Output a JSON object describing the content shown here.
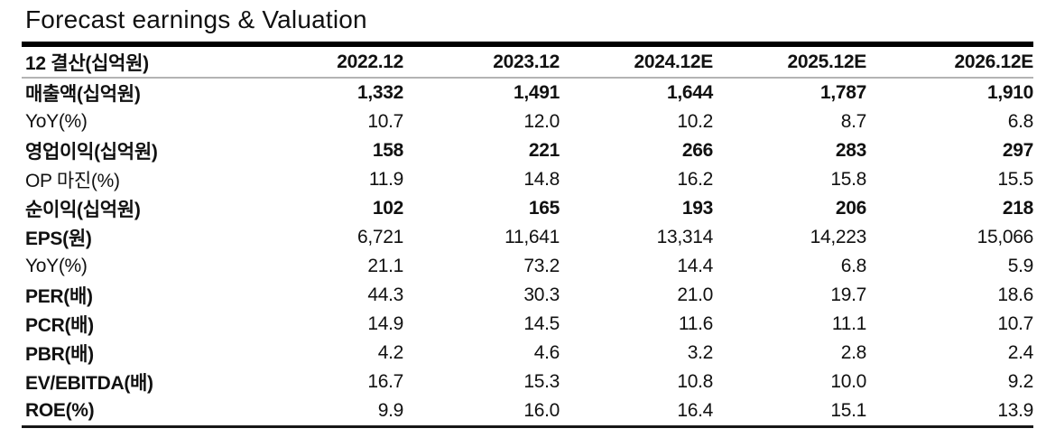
{
  "page": {
    "title": "Forecast earnings & Valuation"
  },
  "table": {
    "header": {
      "label": "12 결산(십억원)",
      "columns": [
        "2022.12",
        "2023.12",
        "2024.12E",
        "2025.12E",
        "2026.12E"
      ]
    },
    "rows": [
      {
        "label": "매출액(십억원)",
        "bold_label": true,
        "bold_values": true,
        "values": [
          "1,332",
          "1,491",
          "1,644",
          "1,787",
          "1,910"
        ]
      },
      {
        "label": "YoY(%)",
        "bold_label": false,
        "bold_values": false,
        "values": [
          "10.7",
          "12.0",
          "10.2",
          "8.7",
          "6.8"
        ]
      },
      {
        "label": "영업이익(십억원)",
        "bold_label": true,
        "bold_values": true,
        "values": [
          "158",
          "221",
          "266",
          "283",
          "297"
        ]
      },
      {
        "label": "OP 마진(%)",
        "bold_label": false,
        "bold_values": false,
        "values": [
          "11.9",
          "14.8",
          "16.2",
          "15.8",
          "15.5"
        ]
      },
      {
        "label": "순이익(십억원)",
        "bold_label": true,
        "bold_values": true,
        "values": [
          "102",
          "165",
          "193",
          "206",
          "218"
        ]
      },
      {
        "label": "EPS(원)",
        "bold_label": true,
        "bold_values": false,
        "values": [
          "6,721",
          "11,641",
          "13,314",
          "14,223",
          "15,066"
        ]
      },
      {
        "label": "YoY(%)",
        "bold_label": false,
        "bold_values": false,
        "values": [
          "21.1",
          "73.2",
          "14.4",
          "6.8",
          "5.9"
        ]
      },
      {
        "label": "PER(배)",
        "bold_label": true,
        "bold_values": false,
        "values": [
          "44.3",
          "30.3",
          "21.0",
          "19.7",
          "18.6"
        ]
      },
      {
        "label": "PCR(배)",
        "bold_label": true,
        "bold_values": false,
        "values": [
          "14.9",
          "14.5",
          "11.6",
          "11.1",
          "10.7"
        ]
      },
      {
        "label": "PBR(배)",
        "bold_label": true,
        "bold_values": false,
        "values": [
          "4.2",
          "4.6",
          "3.2",
          "2.8",
          "2.4"
        ]
      },
      {
        "label": "EV/EBITDA(배)",
        "bold_label": true,
        "bold_values": false,
        "values": [
          "16.7",
          "15.3",
          "10.8",
          "10.0",
          "9.2"
        ]
      },
      {
        "label": "ROE(%)",
        "bold_label": true,
        "bold_values": false,
        "values": [
          "9.9",
          "16.0",
          "16.4",
          "15.1",
          "13.9"
        ]
      }
    ]
  },
  "colors": {
    "text": "#111111",
    "heavy_rule": "#000000",
    "light_rule": "#b3b3b3",
    "background": "#ffffff"
  }
}
